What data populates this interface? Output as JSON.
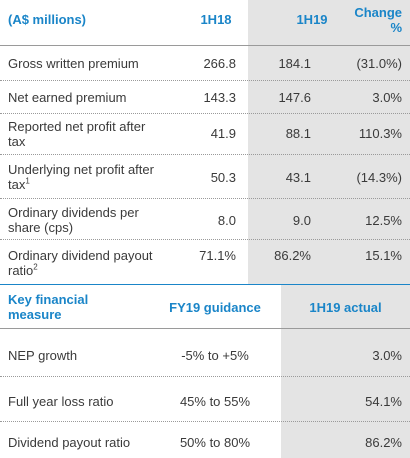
{
  "table1": {
    "header": {
      "label": "(A$ millions)",
      "col1": "1H18",
      "col2": "1H19",
      "col3_line1": "Change",
      "col3_line2": "%"
    },
    "rows": [
      {
        "label": "Gross written premium",
        "label2": "",
        "sup": "",
        "v1": "266.8",
        "v2": "184.1",
        "v3": "(31.0%)"
      },
      {
        "label": "Net earned premium",
        "label2": "",
        "sup": "",
        "v1": "143.3",
        "v2": "147.6",
        "v3": "3.0%"
      },
      {
        "label": "Reported net profit after",
        "label2": "tax",
        "sup": "",
        "v1": "41.9",
        "v2": "88.1",
        "v3": "110.3%"
      },
      {
        "label": "Underlying net profit after",
        "label2": "tax",
        "sup": "1",
        "v1": "50.3",
        "v2": "43.1",
        "v3": "(14.3%)"
      },
      {
        "label": "Ordinary dividends per",
        "label2": "share (cps)",
        "sup": "",
        "v1": "8.0",
        "v2": "9.0",
        "v3": "12.5%"
      },
      {
        "label": "Ordinary dividend payout",
        "label2": "ratio",
        "sup": "2",
        "v1": "71.1%",
        "v2": "86.2%",
        "v3": "15.1%"
      }
    ]
  },
  "table2": {
    "header": {
      "label_line1": "Key financial",
      "label_line2": "measure",
      "col1": "FY19 guidance",
      "col2": "1H19 actual"
    },
    "rows": [
      {
        "label": "NEP growth",
        "v1": "-5% to +5%",
        "v2": "3.0%"
      },
      {
        "label": "Full year loss ratio",
        "v1": "45% to 55%",
        "v2": "54.1%"
      },
      {
        "label": "Dividend payout ratio",
        "v1": "50% to 80%",
        "v2": "86.2%"
      }
    ]
  }
}
